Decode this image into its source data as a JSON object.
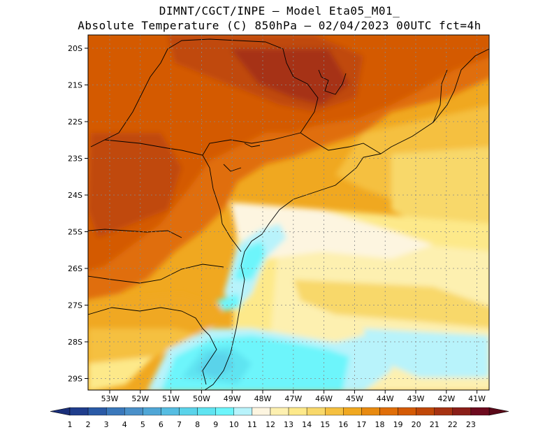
{
  "title_line1": "DIMNT/CGCT/INPE –  Model Eta05_M01_",
  "title_line2": "Absolute Temperature (C) 850hPa –  02/04/2023 00UTC fct=4h",
  "lat_ticks": [
    "20S",
    "21S",
    "22S",
    "23S",
    "24S",
    "25S",
    "26S",
    "27S",
    "28S",
    "29S"
  ],
  "lon_ticks": [
    "53W",
    "52W",
    "51W",
    "50W",
    "49W",
    "48W",
    "47W",
    "46W",
    "45W",
    "44W",
    "43W",
    "42W",
    "41W"
  ],
  "colorbar": {
    "labels": [
      "1",
      "2",
      "3",
      "4",
      "5",
      "6",
      "7",
      "8",
      "9",
      "10",
      "11",
      "12",
      "13",
      "14",
      "15",
      "16",
      "17",
      "18",
      "19",
      "20",
      "21",
      "22",
      "23"
    ],
    "colors": [
      "#1f3d8c",
      "#2a5aa6",
      "#3a78bb",
      "#4a90c9",
      "#4fa6d6",
      "#56bde2",
      "#5ad3ea",
      "#5fe4f1",
      "#6df5fb",
      "#b8f3fb",
      "#fdf5e0",
      "#fdf0b0",
      "#fde98a",
      "#f8d86a",
      "#f5c040",
      "#f0a820",
      "#e88a10",
      "#e06e08",
      "#d45a05",
      "#c04808",
      "#a63212",
      "#8a1e18",
      "#6d0a1e"
    ],
    "low_arrow_color": "#1a2f7a",
    "high_arrow_color": "#5a0818"
  }
}
